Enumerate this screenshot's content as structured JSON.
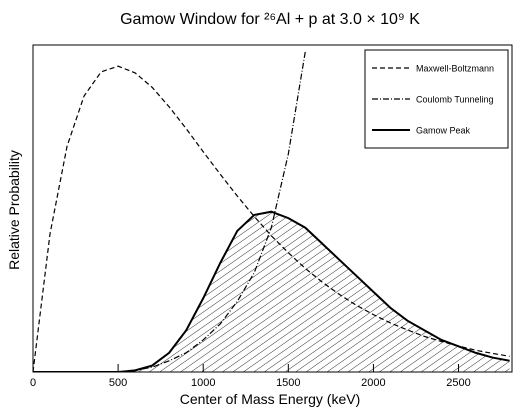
{
  "chart_data": {
    "type": "line",
    "title": "Gamow Window for ²⁶Al + p at 3.0 × 10⁹ K",
    "x_label": "Center of Mass Energy (keV)",
    "y_label": "Relative Probability",
    "x": [
      0,
      100,
      200,
      300,
      400,
      500,
      600,
      700,
      800,
      900,
      1000,
      1100,
      1200,
      1300,
      1400,
      1500,
      1600,
      1700,
      1800,
      1900,
      2000,
      2100,
      2200,
      2300,
      2400,
      2500,
      2600,
      2700,
      2800
    ],
    "xlim": [
      0,
      2820
    ],
    "xticks": [
      0,
      500,
      1000,
      1500,
      2000,
      2500
    ],
    "ylim": [
      0,
      1.02
    ],
    "legend": "upper right",
    "series": [
      {
        "name": "Maxwell-Boltzmann",
        "color": "#000000",
        "style": "dashed",
        "values": [
          0,
          0.431,
          0.704,
          0.861,
          0.936,
          0.954,
          0.933,
          0.888,
          0.827,
          0.759,
          0.687,
          0.617,
          0.549,
          0.485,
          0.425,
          0.372,
          0.323,
          0.28,
          0.242,
          0.208,
          0.179,
          0.153,
          0.131,
          0.111,
          0.095,
          0.081,
          0.068,
          0.058,
          0.049
        ]
      },
      {
        "name": "Coulomb Tunneling",
        "color": "#000000",
        "style": "dashdot",
        "values": [
          0,
          0,
          0,
          0,
          0,
          0,
          0.005,
          0.015,
          0.035,
          0.06,
          0.1,
          0.15,
          0.22,
          0.31,
          0.45,
          0.68,
          1.0,
          null,
          null,
          null,
          null,
          null,
          null,
          null,
          null,
          null,
          null,
          null,
          null
        ]
      },
      {
        "name": "Gamow Peak",
        "color": "#000000",
        "style": "solid",
        "hatch": true,
        "values": [
          0,
          0,
          0,
          0,
          0,
          0,
          0.005,
          0.02,
          0.06,
          0.13,
          0.23,
          0.34,
          0.44,
          0.49,
          0.5,
          0.48,
          0.45,
          0.4,
          0.35,
          0.3,
          0.25,
          0.2,
          0.16,
          0.13,
          0.1,
          0.08,
          0.06,
          0.045,
          0.035
        ]
      }
    ]
  }
}
